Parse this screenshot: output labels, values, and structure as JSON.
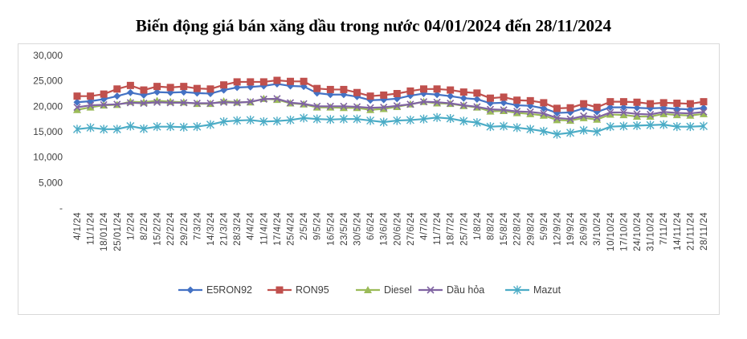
{
  "chart_data": {
    "type": "line",
    "title": "Biến động giá bán xăng dầu trong nước 04/01/2024 đến 28/11/2024",
    "xlabel": "",
    "ylabel": "",
    "ylim": [
      0,
      30000
    ],
    "yticks": [
      "-",
      "5,000",
      "10,000",
      "15,000",
      "20,000",
      "25,000",
      "30,000"
    ],
    "grid": false,
    "legend_position": "bottom",
    "categories": [
      "4/1/24",
      "11/1/24",
      "18/01/24",
      "25/01/24",
      "1/2/24",
      "8/2/24",
      "15/2/24",
      "22/2/24",
      "29/2/24",
      "7/3/24",
      "14/3/24",
      "21/3/24",
      "28/3/24",
      "4/4/24",
      "11/4/24",
      "17/4/24",
      "25/4/24",
      "2/5/24",
      "9/5/24",
      "16/5/24",
      "23/5/24",
      "30/5/24",
      "6/6/24",
      "13/6/24",
      "20/6/24",
      "27/6/24",
      "4/7/24",
      "11/7/24",
      "18/7/24",
      "25/7/24",
      "1/8/24",
      "8/8/24",
      "15/8/24",
      "22/8/24",
      "29/8/24",
      "5/9/24",
      "12/9/24",
      "19/9/24",
      "26/9/24",
      "3/10/24",
      "10/10/24",
      "17/10/24",
      "24/10/24",
      "31/10/24",
      "7/11/24",
      "14/11/24",
      "21/11/24",
      "28/11/24"
    ],
    "series": [
      {
        "name": "E5RON92",
        "color": "#4472C4",
        "marker": "diamond",
        "values": [
          20800,
          21000,
          21400,
          22000,
          22700,
          22200,
          22800,
          22700,
          22800,
          22600,
          22500,
          23200,
          23700,
          23800,
          24000,
          24400,
          24000,
          23900,
          22600,
          22300,
          22300,
          21900,
          21200,
          21300,
          21500,
          22100,
          22500,
          22300,
          22000,
          21600,
          21400,
          20600,
          20700,
          20200,
          20100,
          19600,
          18700,
          18800,
          19600,
          18900,
          19800,
          19800,
          19700,
          19600,
          19700,
          19500,
          19400,
          19700
        ]
      },
      {
        "name": "RON95",
        "color": "#C0504D",
        "marker": "square",
        "values": [
          22000,
          22000,
          22400,
          23400,
          24100,
          23200,
          23900,
          23700,
          23900,
          23500,
          23400,
          24200,
          24800,
          24800,
          24800,
          25100,
          24900,
          24900,
          23500,
          23300,
          23300,
          22700,
          22000,
          22200,
          22500,
          23000,
          23400,
          23400,
          23200,
          22800,
          22600,
          21600,
          21800,
          21200,
          21100,
          20700,
          19600,
          19700,
          20500,
          19800,
          20900,
          20900,
          20800,
          20500,
          20700,
          20600,
          20500,
          20900
        ]
      },
      {
        "name": "Diesel",
        "color": "#9BBB59",
        "marker": "triangle",
        "values": [
          19300,
          19800,
          20200,
          20300,
          20900,
          20800,
          21100,
          20900,
          20800,
          20500,
          20500,
          21000,
          20800,
          20800,
          21500,
          21300,
          20600,
          20400,
          19800,
          19800,
          19700,
          19700,
          19300,
          19500,
          19900,
          20400,
          20900,
          20600,
          20500,
          20100,
          19800,
          19000,
          19100,
          18700,
          18500,
          18200,
          17300,
          17200,
          17700,
          17400,
          18400,
          18300,
          18000,
          18000,
          18500,
          18300,
          18200,
          18500
        ]
      },
      {
        "name": "Dầu hỏa",
        "color": "#8064A2",
        "marker": "x",
        "values": [
          19800,
          20200,
          20300,
          20400,
          20700,
          20600,
          20800,
          20700,
          20700,
          20600,
          20600,
          20800,
          20700,
          20900,
          21400,
          21500,
          20700,
          20500,
          20000,
          20000,
          20000,
          19900,
          19700,
          19800,
          20100,
          20400,
          20900,
          20800,
          20600,
          20200,
          19900,
          19400,
          19300,
          19000,
          18900,
          18600,
          17700,
          17500,
          18100,
          17800,
          18800,
          18800,
          18500,
          18400,
          18900,
          18700,
          18600,
          18900
        ]
      },
      {
        "name": "Mazut",
        "color": "#4BACC6",
        "marker": "asterisk",
        "values": [
          15500,
          15800,
          15500,
          15500,
          16100,
          15600,
          16000,
          16000,
          15900,
          16000,
          16400,
          17000,
          17200,
          17300,
          17000,
          17100,
          17300,
          17700,
          17500,
          17400,
          17500,
          17500,
          17200,
          16900,
          17200,
          17300,
          17500,
          17800,
          17600,
          17100,
          16800,
          16000,
          16100,
          15800,
          15500,
          15100,
          14500,
          14800,
          15300,
          15000,
          16000,
          16100,
          16200,
          16300,
          16400,
          16000,
          16000,
          16100
        ]
      }
    ]
  }
}
